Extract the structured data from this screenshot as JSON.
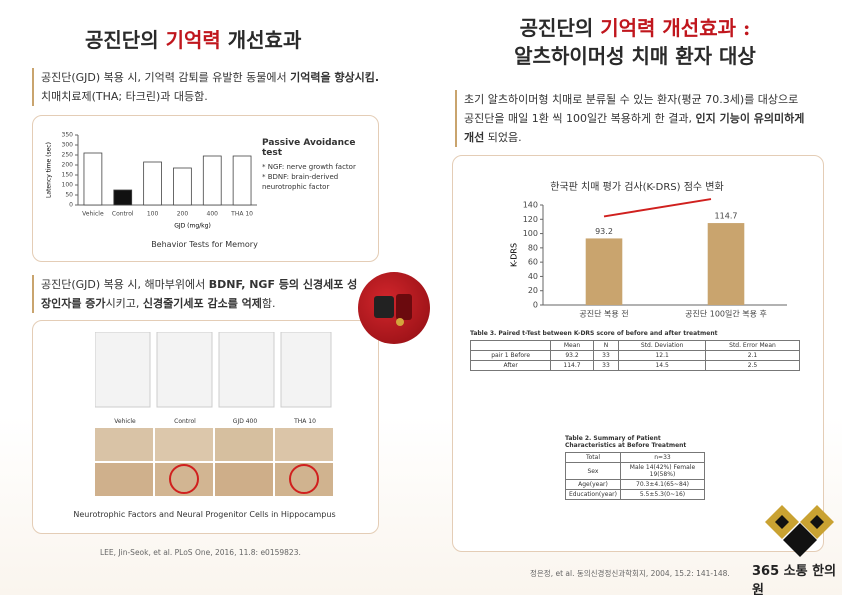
{
  "left": {
    "title_parts": [
      {
        "text": "공진단의 "
      },
      {
        "text": "기억력",
        "color": "#c0161d"
      },
      {
        "text": " 개선효과"
      }
    ],
    "paragraph1": [
      {
        "text": "공진단(GJD) 복용 시, 기억력 감퇴를 유발한 동물에서 "
      },
      {
        "text": "기억력을 향상시킴.",
        "bold": true
      },
      {
        "text": " 치매치료제(THA; 타크린)과 대등함."
      }
    ],
    "figure1": {
      "legend_title": "Passive Avoidance test",
      "notes": [
        "* NGF: nerve growth factor",
        "* BDNF: brain-derived neurotrophic factor"
      ],
      "caption": "Behavior Tests for Memory"
    },
    "paragraph2": [
      {
        "text": "공진단(GJD) 복용 시, 해마부위에서 "
      },
      {
        "text": "BDNF, NGF 등의 신경세포 성장인자를 증가",
        "bold": true
      },
      {
        "text": "시키고, "
      },
      {
        "text": "신경줄기세포 감소를 억제",
        "bold": true
      },
      {
        "text": "함."
      }
    ],
    "figure2": {
      "labels": [
        "Vehicle",
        "Control",
        "GJD 400",
        "THA 10"
      ],
      "caption": "Neurotrophic Factors and Neural Progenitor Cells in Hippocampus"
    },
    "reference": "LEE, Jin-Seok, et al. PLoS One, 2016, 11.8: e0159823."
  },
  "right": {
    "title_line1": [
      {
        "text": "공진단의 "
      },
      {
        "text": "기억력 개선효과 :",
        "color": "#c0161d"
      }
    ],
    "title_line2": "알츠하이머성 치매 환자 대상",
    "paragraph": [
      {
        "text": "초기 알츠하이머형 치매로 분류될 수 있는 환자(평균 70.3세)를 대상으로 공진단을 매일 1환 씩 100일간 복용하게 한 결과, "
      },
      {
        "text": "인지 기능이 유의미하게 개선",
        "bold": true
      },
      {
        "text": " 되었음."
      }
    ],
    "table3": {
      "title": "Table 3. Paired t-Test between K-DRS score of before and after treatment",
      "header": [
        "",
        "Mean",
        "N",
        "Std. Deviation",
        "Std. Error Mean"
      ],
      "rows": [
        [
          "pair 1 Before",
          "93.2",
          "33",
          "12.1",
          "2.1"
        ],
        [
          "After",
          "114.7",
          "33",
          "14.5",
          "2.5"
        ]
      ]
    },
    "table2": {
      "title": "Table 2. Summary of Patient Characteristics at Before Treatment",
      "rows": [
        [
          "Total",
          "n=33"
        ],
        [
          "Sex",
          "Male 14(42%) Female 19(58%)"
        ],
        [
          "Age(year)",
          "70.3±4.1(65~84)"
        ],
        [
          "Education(year)",
          "5.5±5.3(0~16)"
        ]
      ]
    },
    "reference": "정은정, et al. 동의신경정신과학회지, 2004, 15.2: 141-148."
  },
  "logo": "365 소통 한의원",
  "chart_data": [
    {
      "type": "bar",
      "categories": [
        "Vehicle",
        "Control",
        "100",
        "200",
        "400",
        "THA 10"
      ],
      "values": [
        260,
        75,
        215,
        185,
        245,
        245
      ],
      "colors": [
        "#ffffff",
        "#111111",
        "#ffffff",
        "#ffffff",
        "#ffffff",
        "#ffffff"
      ],
      "stroke": "#444444",
      "ylabel": "Latency time (sec)",
      "xlabel": "GJD (mg/kg)",
      "ylim": [
        0,
        350
      ],
      "yticks": [
        0,
        50,
        100,
        150,
        200,
        250,
        300,
        350
      ]
    },
    {
      "type": "bar",
      "title": "한국판 치매 평가 검사(K-DRS) 점수 변화",
      "categories": [
        "공진단 복용 전",
        "공진단 100일간 복용 후"
      ],
      "values": [
        93.2,
        114.7
      ],
      "color": "#c9a46e",
      "show_values": true,
      "ylabel": "K-DRS",
      "ylim": [
        0,
        140
      ],
      "yticks": [
        0,
        20,
        40,
        60,
        80,
        100,
        120,
        140
      ]
    }
  ]
}
